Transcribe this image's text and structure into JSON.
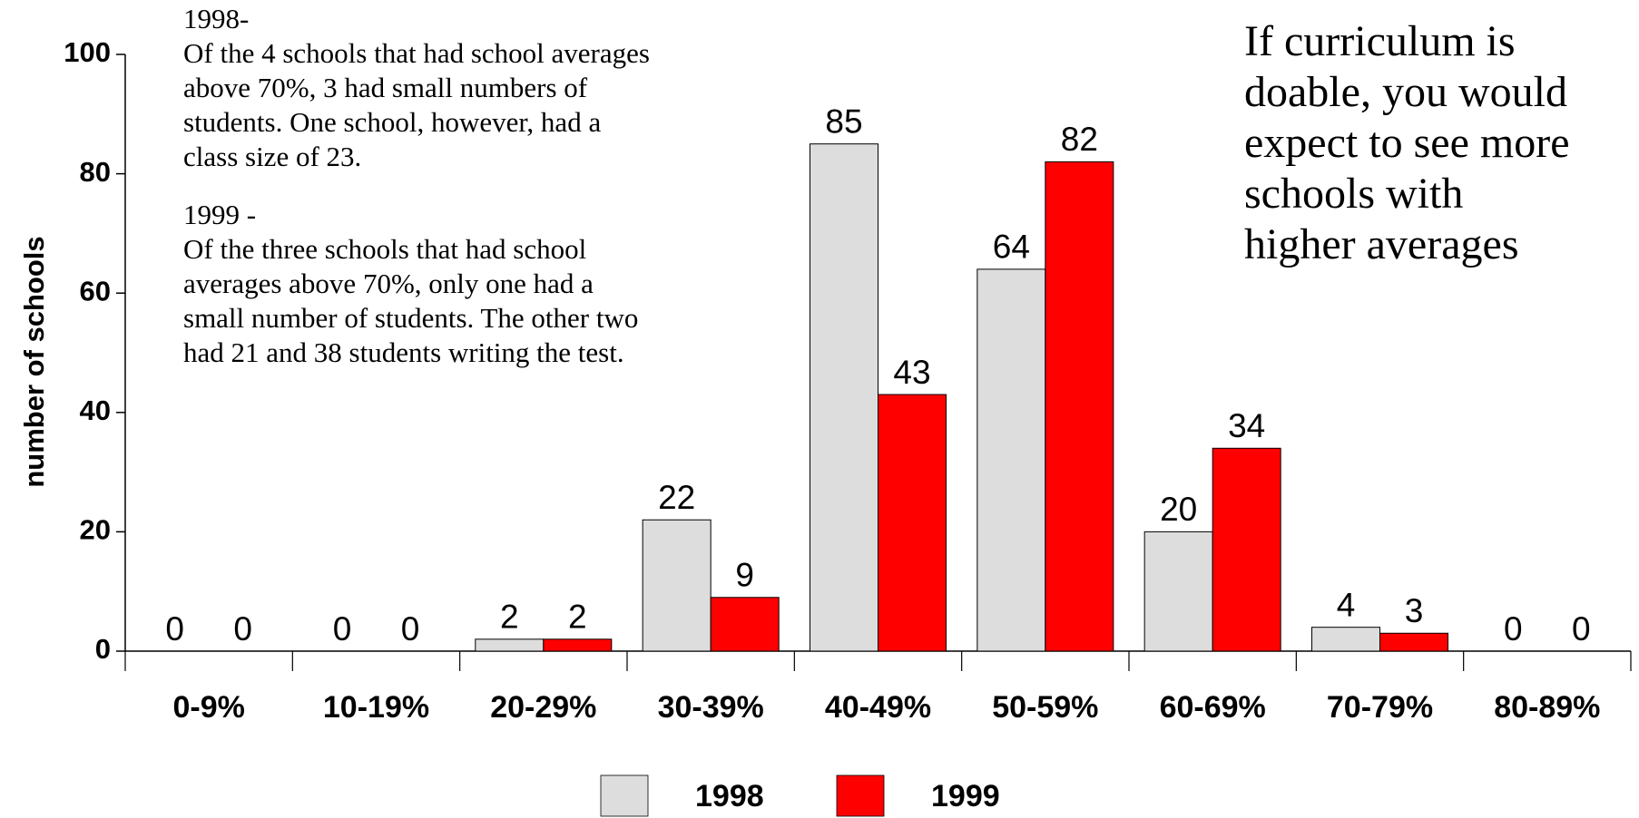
{
  "chart_data": {
    "type": "bar",
    "y_axis_label": "number of schools",
    "categories": [
      "0-9%",
      "10-19%",
      "20-29%",
      "30-39%",
      "40-49%",
      "50-59%",
      "60-69%",
      "70-79%",
      "80-89%"
    ],
    "series": [
      {
        "name": "1998",
        "color": "#dddddd",
        "values": [
          0,
          0,
          2,
          22,
          85,
          64,
          20,
          4,
          0
        ]
      },
      {
        "name": "1999",
        "color": "#ff0000",
        "values": [
          0,
          0,
          2,
          9,
          43,
          82,
          34,
          3,
          0
        ]
      }
    ],
    "ylim": [
      0,
      100
    ],
    "yticks": [
      0,
      20,
      40,
      60,
      80,
      100
    ],
    "grid": false,
    "legend": "bottom",
    "notes": [
      {
        "heading": "1998-",
        "lines": [
          "Of the 4 schools that had school averages",
          "above 70%, 3 had small numbers of",
          "students. One school, however, had a",
          "class size of 23."
        ]
      },
      {
        "heading": "1999 -",
        "lines": [
          "Of the three schools that had school",
          "averages above 70%, only one had a",
          "small number of students. The other two",
          "had 21 and 38 students writing the test."
        ]
      }
    ],
    "callout": [
      "If curriculum is",
      "doable, you would",
      "expect to see more",
      "schools with",
      "higher averages"
    ]
  }
}
